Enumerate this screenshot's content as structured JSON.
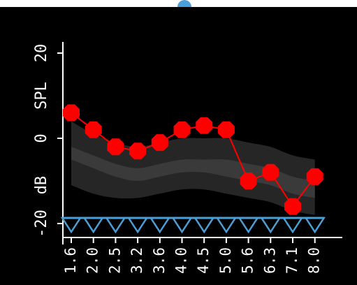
{
  "colors": {
    "background": "#000000",
    "axis": "#ffffff",
    "series": "#ff0000",
    "band_outer": "#262626",
    "band_inner": "#3a3a3a",
    "threshold": "#4a9fd8",
    "indicator": "#4a9fd8"
  },
  "chart_data": {
    "type": "line",
    "ylabel": "dB SPL",
    "xlabel": "",
    "ylim": [
      -20,
      20
    ],
    "y_ticks": [
      "20",
      "0",
      "-20"
    ],
    "categories": [
      "1.6",
      "2.0",
      "2.5",
      "3.2",
      "3.6",
      "4.0",
      "4.5",
      "5.0",
      "5.6",
      "6.3",
      "7.1",
      "8.0"
    ],
    "series": [
      {
        "values": [
          6,
          2,
          -2,
          -3,
          -1,
          2,
          3,
          2,
          -10,
          -8,
          -16,
          -9
        ],
        "marker": "octagon",
        "color": "#ff0000"
      }
    ],
    "band_outer": {
      "upper": [
        4,
        1,
        -1,
        -2,
        -1,
        0,
        0,
        0,
        -1,
        -2,
        -4,
        -5
      ],
      "lower": [
        -11,
        -13,
        -14,
        -14,
        -13,
        -12,
        -12,
        -13,
        -14,
        -15,
        -17,
        -18
      ]
    },
    "band_inner": {
      "upper": [
        -2,
        -4,
        -6,
        -7,
        -6,
        -5,
        -5,
        -5,
        -6,
        -7,
        -9,
        -10
      ],
      "lower": [
        -5,
        -7,
        -9,
        -10,
        -9,
        -8,
        -8,
        -9,
        -10,
        -11,
        -13,
        -14
      ]
    },
    "threshold_markers": {
      "shape": "down-triangle",
      "y": -20,
      "color": "#4a9fd8"
    },
    "grid": false,
    "legend": "none"
  }
}
